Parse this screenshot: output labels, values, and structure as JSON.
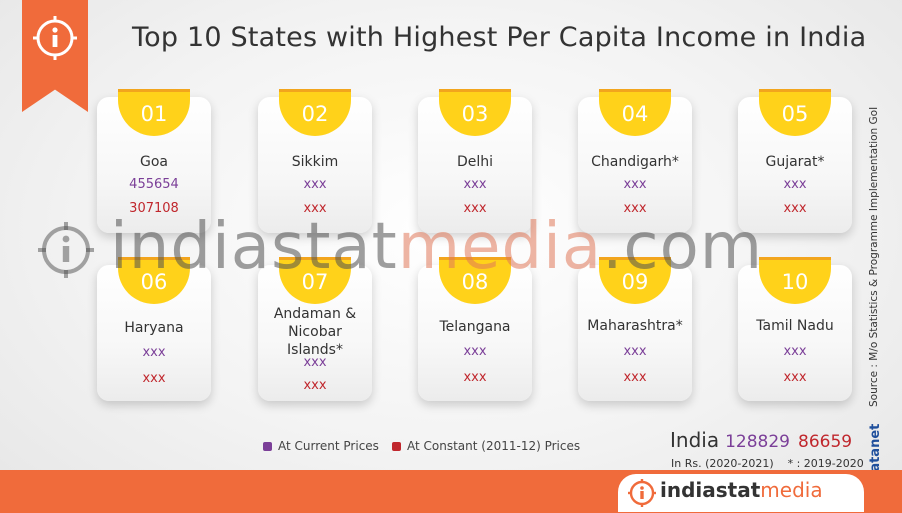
{
  "title": "Top 10 States with Highest Per Capita Income in India",
  "states": [
    {
      "rank": "01",
      "name": "Goa",
      "current": "455654",
      "constant": "307108"
    },
    {
      "rank": "02",
      "name": "Sikkim",
      "current": "xxx",
      "constant": "xxx"
    },
    {
      "rank": "03",
      "name": "Delhi",
      "current": "xxx",
      "constant": "xxx"
    },
    {
      "rank": "04",
      "name": "Chandigarh*",
      "current": "xxx",
      "constant": "xxx"
    },
    {
      "rank": "05",
      "name": "Gujarat*",
      "current": "xxx",
      "constant": "xxx"
    },
    {
      "rank": "06",
      "name": "Haryana",
      "current": "xxx",
      "constant": "xxx"
    },
    {
      "rank": "07",
      "name": "Andaman & Nicobar Islands*",
      "current": "xxx",
      "constant": "xxx"
    },
    {
      "rank": "08",
      "name": "Telangana",
      "current": "xxx",
      "constant": "xxx"
    },
    {
      "rank": "09",
      "name": "Maharashtra*",
      "current": "xxx",
      "constant": "xxx"
    },
    {
      "rank": "10",
      "name": "Tamil Nadu",
      "current": "xxx",
      "constant": "xxx"
    }
  ],
  "legend": {
    "current": "At Current Prices",
    "constant": "At Constant (2011-12) Prices"
  },
  "india": {
    "label": "India",
    "current": "128829",
    "constant": "86659"
  },
  "note": "In Rs. (2020-2021)    * : 2019-2020",
  "source": "Source : M/o Statistics & Programme Implementation GoI",
  "watermark": {
    "main": "indiastat",
    "accent": "media",
    "suffix": ".com"
  },
  "brand": {
    "main": "indiastat",
    "accent": "media"
  },
  "datanet": "© Datanet",
  "colors": {
    "accent": "#f06b3b",
    "tab": "#ffd21a",
    "current": "#7b3f98",
    "constant": "#c0272d"
  }
}
